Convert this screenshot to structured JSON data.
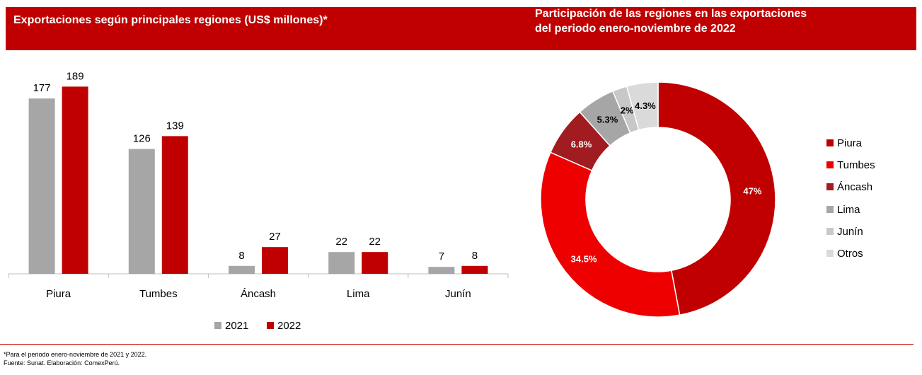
{
  "header": {
    "left_title": "Exportaciones según principales regiones (US$ millones)*",
    "right_title_line1": "Participación de las regiones en las exportaciones",
    "right_title_line2": "del periodo enero-noviembre de 2022"
  },
  "chart_data": [
    {
      "type": "bar",
      "title": "Exportaciones según principales regiones (US$ millones)*",
      "categories": [
        "Piura",
        "Tumbes",
        "Áncash",
        "Lima",
        "Junín"
      ],
      "series": [
        {
          "name": "2021",
          "values": [
            177,
            126,
            8,
            22,
            7
          ],
          "color": "#a6a6a6"
        },
        {
          "name": "2022",
          "values": [
            189,
            139,
            27,
            22,
            8
          ],
          "color": "#c00000"
        }
      ],
      "ylim": [
        0,
        200
      ],
      "grid": false,
      "legend_position": "bottom"
    },
    {
      "type": "pie",
      "subtype": "donut",
      "title": "Participación de las regiones en las exportaciones del periodo enero-noviembre de 2022",
      "slices": [
        {
          "label": "Piura",
          "value": 47,
          "display": "47%",
          "color": "#c00000",
          "text_color": "#ffffff"
        },
        {
          "label": "Tumbes",
          "value": 34.5,
          "display": "34.5%",
          "color": "#ee0000",
          "text_color": "#ffffff"
        },
        {
          "label": "Áncash",
          "value": 6.8,
          "display": "6.8%",
          "color": "#a01c20",
          "text_color": "#ffffff"
        },
        {
          "label": "Lima",
          "value": 5.3,
          "display": "5.3%",
          "color": "#a6a6a6",
          "text_color": "#000000"
        },
        {
          "label": "Junín",
          "value": 2,
          "display": "2%",
          "color": "#c8c8c8",
          "text_color": "#000000"
        },
        {
          "label": "Otros",
          "value": 4.3,
          "display": "4.3%",
          "color": "#dadada",
          "text_color": "#000000"
        }
      ],
      "legend_position": "right"
    }
  ],
  "footnotes": {
    "note": "*Para el periodo enero-noviembre de 2021 y 2022.",
    "source": "Fuente: Sunat. Elaboración: ComexPerú."
  }
}
